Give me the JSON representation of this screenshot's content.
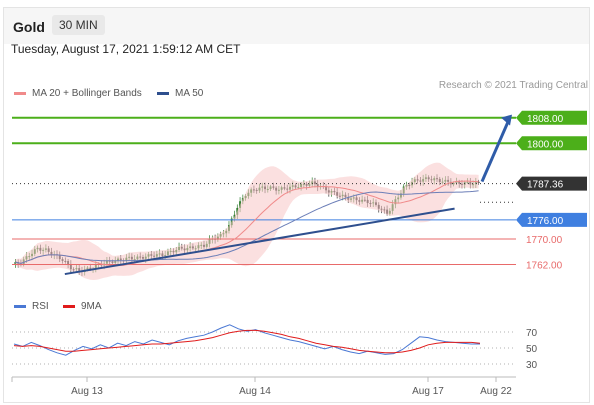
{
  "header": {
    "symbol": "Gold",
    "timeframe": "30 MIN",
    "datetime": "Tuesday, August 17, 2021 1:59:12 AM CET"
  },
  "legend": [
    {
      "name": "MA 20 + Bollinger Bands",
      "color": "#f08a8a"
    },
    {
      "name": "MA 50",
      "color": "#2e4f8e"
    }
  ],
  "credit": "Research © 2021 Trading Central",
  "rsi_legend": [
    {
      "name": "RSI",
      "color": "#4a78d4"
    },
    {
      "name": "9MA",
      "color": "#e01b1b"
    }
  ],
  "colors": {
    "resistance": "#4caf1a",
    "current": "#333333",
    "pivot": "#3f7fe0",
    "support": "#e86a6a",
    "candle_up": "#2e7d2e",
    "candle_down": "#333333"
  },
  "chart_data": [
    {
      "type": "candlestick",
      "instrument": "Gold",
      "interval": "30 MIN",
      "x_ticks": [
        "Aug 13",
        "Aug 14",
        "Aug 17",
        "Aug 22"
      ],
      "ylim": [
        1754,
        1812
      ],
      "close_path": [
        1762.5,
        1765,
        1767,
        1766.5,
        1765,
        1763.5,
        1761,
        1760,
        1760.5,
        1761.5,
        1762.5,
        1763,
        1763.5,
        1764,
        1764,
        1764.5,
        1765,
        1765,
        1766,
        1767,
        1767,
        1767.5,
        1768,
        1770,
        1771,
        1774,
        1780,
        1784,
        1785.5,
        1786,
        1786,
        1785.5,
        1786,
        1786.5,
        1787,
        1787.5,
        1786.5,
        1785,
        1784,
        1783,
        1782.5,
        1782,
        1781.5,
        1780,
        1778,
        1782,
        1786,
        1788,
        1788.5,
        1789,
        1788.5,
        1788,
        1787.5,
        1787.5,
        1787.5,
        1787.4
      ],
      "levels": [
        {
          "label": "1808.00",
          "value": 1808,
          "kind": "resistance"
        },
        {
          "label": "1800.00",
          "value": 1800,
          "kind": "resistance"
        },
        {
          "label": "1787.36",
          "value": 1787.36,
          "kind": "current"
        },
        {
          "label": "1776.00",
          "value": 1776,
          "kind": "pivot"
        },
        {
          "label": "1770.00",
          "value": 1770,
          "kind": "support"
        },
        {
          "label": "1762.00",
          "value": 1762,
          "kind": "support"
        }
      ],
      "trendline": {
        "from": {
          "index": 6,
          "value": 1759
        },
        "to": {
          "index": 52,
          "value": 1779.5
        }
      },
      "projection_arrow": {
        "from_value": 1788,
        "to_value": 1809
      },
      "series": [
        {
          "name": "MA 20 + Bollinger Bands",
          "type": "line+band"
        },
        {
          "name": "MA 50",
          "type": "line"
        }
      ]
    },
    {
      "type": "line",
      "title": "RSI",
      "ylim": [
        20,
        85
      ],
      "y_ticks": [
        70,
        50,
        30
      ],
      "series": [
        {
          "name": "RSI",
          "values": [
            55,
            52,
            57,
            53,
            48,
            44,
            41,
            47,
            52,
            49,
            54,
            50,
            56,
            53,
            58,
            55,
            60,
            57,
            54,
            59,
            62,
            64,
            66,
            70,
            75,
            79,
            74,
            71,
            73,
            69,
            66,
            63,
            60,
            58,
            55,
            52,
            49,
            52,
            48,
            45,
            43,
            46,
            44,
            42,
            43,
            48,
            56,
            64,
            63,
            60,
            58,
            57,
            56,
            55,
            55
          ]
        },
        {
          "name": "9MA",
          "values": [
            53,
            52,
            53,
            52,
            50,
            48,
            46,
            46,
            47,
            48,
            49,
            50,
            51,
            52,
            53,
            54,
            55,
            55,
            56,
            57,
            58,
            59,
            61,
            63,
            66,
            69,
            71,
            72,
            72,
            71,
            69,
            67,
            64,
            62,
            59,
            56,
            54,
            52,
            51,
            49,
            47,
            46,
            45,
            44,
            44,
            45,
            47,
            50,
            54,
            56,
            57,
            57,
            57,
            57,
            56
          ]
        }
      ]
    }
  ]
}
